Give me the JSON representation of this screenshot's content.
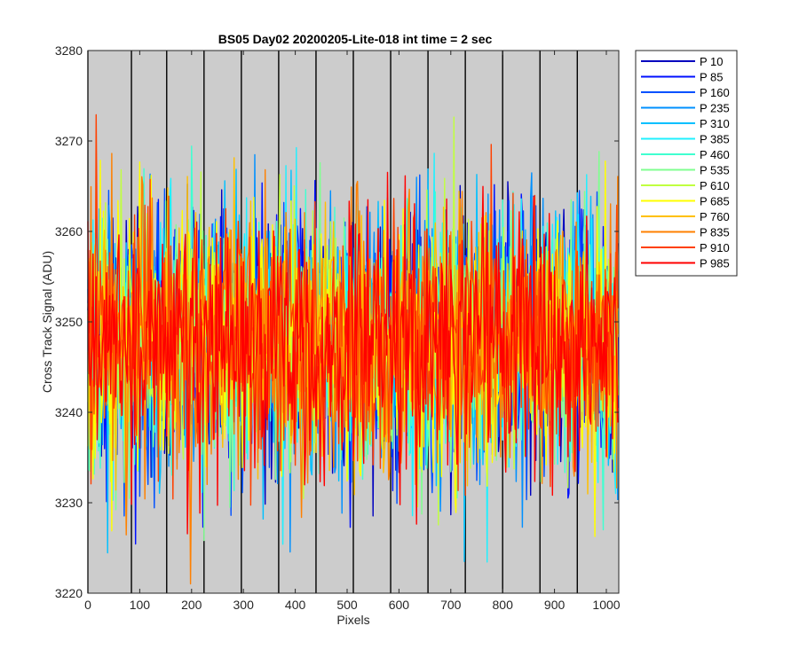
{
  "chart_data": {
    "type": "line",
    "title": "BS05 Day02 20200205-Lite-018 int time = 2 sec",
    "xlabel": "Pixels",
    "ylabel": "Cross Track Signal (ADU)",
    "xlim": [
      0,
      1024
    ],
    "ylim": [
      3220,
      3280
    ],
    "xticks": [
      0,
      100,
      200,
      300,
      400,
      500,
      600,
      700,
      800,
      900,
      1000
    ],
    "yticks": [
      3220,
      3230,
      3240,
      3250,
      3260,
      3270,
      3280
    ],
    "xtick_labels": [
      "0",
      "100",
      "200",
      "300",
      "400",
      "500",
      "600",
      "700",
      "800",
      "900",
      "1000"
    ],
    "ytick_labels": [
      "3220",
      "3230",
      "3240",
      "3250",
      "3260",
      "3270",
      "3280"
    ],
    "grid": false,
    "plot_background": "#cccccc",
    "vertical_lines_x": [
      0,
      84,
      152,
      224,
      296,
      368,
      440,
      512,
      584,
      656,
      728,
      800,
      872,
      944
    ],
    "vertical_line_color": "#000000",
    "legend_position": "outside-right",
    "noise_model": {
      "mean": 3248,
      "std": 7,
      "min_observed": 3221,
      "max_observed": 3274
    },
    "series": [
      {
        "name": "P 10",
        "color": "#0000bf"
      },
      {
        "name": "P 85",
        "color": "#0010ff"
      },
      {
        "name": "P 160",
        "color": "#0050ff"
      },
      {
        "name": "P 235",
        "color": "#0090ff"
      },
      {
        "name": "P 310",
        "color": "#00c0ff"
      },
      {
        "name": "P 385",
        "color": "#20f0ff"
      },
      {
        "name": "P 460",
        "color": "#40ffd0"
      },
      {
        "name": "P 535",
        "color": "#80ff90"
      },
      {
        "name": "P 610",
        "color": "#c0ff40"
      },
      {
        "name": "P 685",
        "color": "#ffff00"
      },
      {
        "name": "P 760",
        "color": "#ffc000"
      },
      {
        "name": "P 835",
        "color": "#ff8000"
      },
      {
        "name": "P 910",
        "color": "#ff4000"
      },
      {
        "name": "P 985",
        "color": "#ff0000"
      }
    ]
  }
}
